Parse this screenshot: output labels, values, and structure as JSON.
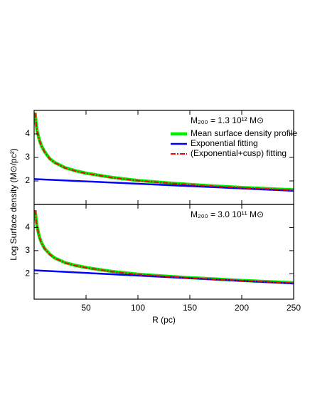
{
  "chart_data": [
    {
      "type": "line",
      "annotation": "M₂₀₀ = 1.3 10¹² M⊙",
      "ylabel": "Log Surface density (M⊙/pc²)",
      "xlim": [
        0,
        250
      ],
      "ylim": [
        1,
        5
      ],
      "yticks": [
        2,
        3,
        4
      ],
      "series": [
        {
          "name": "Mean surface density profile",
          "color": "#00ee00",
          "x": [
            1,
            2,
            3,
            5,
            7,
            10,
            15,
            20,
            30,
            40,
            50,
            75,
            100,
            125,
            150,
            175,
            200,
            225,
            250
          ],
          "values": [
            4.9,
            4.4,
            4.1,
            3.75,
            3.5,
            3.25,
            2.95,
            2.78,
            2.56,
            2.43,
            2.33,
            2.15,
            2.02,
            1.93,
            1.85,
            1.78,
            1.72,
            1.67,
            1.62
          ]
        },
        {
          "name": "Exponential fitting",
          "color": "#0000ff",
          "x": [
            0,
            250
          ],
          "values": [
            2.08,
            1.58
          ]
        },
        {
          "name": "(Exponential+cusp) fitting",
          "color": "#ff0000",
          "x": [
            1,
            2,
            3,
            5,
            7,
            10,
            15,
            20,
            30,
            40,
            50,
            75,
            100,
            125,
            150,
            175,
            200,
            225,
            250
          ],
          "values": [
            4.9,
            4.4,
            4.1,
            3.74,
            3.49,
            3.24,
            2.94,
            2.77,
            2.55,
            2.42,
            2.32,
            2.14,
            2.01,
            1.92,
            1.84,
            1.77,
            1.71,
            1.66,
            1.6
          ]
        }
      ]
    },
    {
      "type": "line",
      "annotation": "M₂₀₀ = 3.0 10¹¹ M⊙",
      "xlabel": "R (pc)",
      "xlim": [
        0,
        250
      ],
      "xticks": [
        50,
        100,
        150,
        200,
        250
      ],
      "ylim": [
        0.9,
        5
      ],
      "yticks": [
        2,
        3,
        4
      ],
      "series": [
        {
          "color": "#00ee00",
          "x": [
            1,
            2,
            3,
            5,
            7,
            10,
            15,
            20,
            30,
            40,
            50,
            75,
            100,
            125,
            150,
            175,
            200,
            225,
            250
          ],
          "values": [
            4.75,
            4.3,
            4.0,
            3.6,
            3.35,
            3.1,
            2.85,
            2.68,
            2.48,
            2.36,
            2.27,
            2.1,
            1.98,
            1.9,
            1.83,
            1.77,
            1.71,
            1.66,
            1.61
          ]
        },
        {
          "color": "#0000ff",
          "x": [
            0,
            250
          ],
          "values": [
            2.15,
            1.58
          ]
        },
        {
          "color": "#ff0000",
          "x": [
            1,
            2,
            3,
            5,
            7,
            10,
            15,
            20,
            30,
            40,
            50,
            75,
            100,
            125,
            150,
            175,
            200,
            225,
            250
          ],
          "values": [
            4.75,
            4.3,
            4.0,
            3.59,
            3.34,
            3.09,
            2.84,
            2.67,
            2.47,
            2.35,
            2.26,
            2.09,
            1.97,
            1.89,
            1.82,
            1.76,
            1.7,
            1.65,
            1.6
          ]
        }
      ]
    }
  ]
}
